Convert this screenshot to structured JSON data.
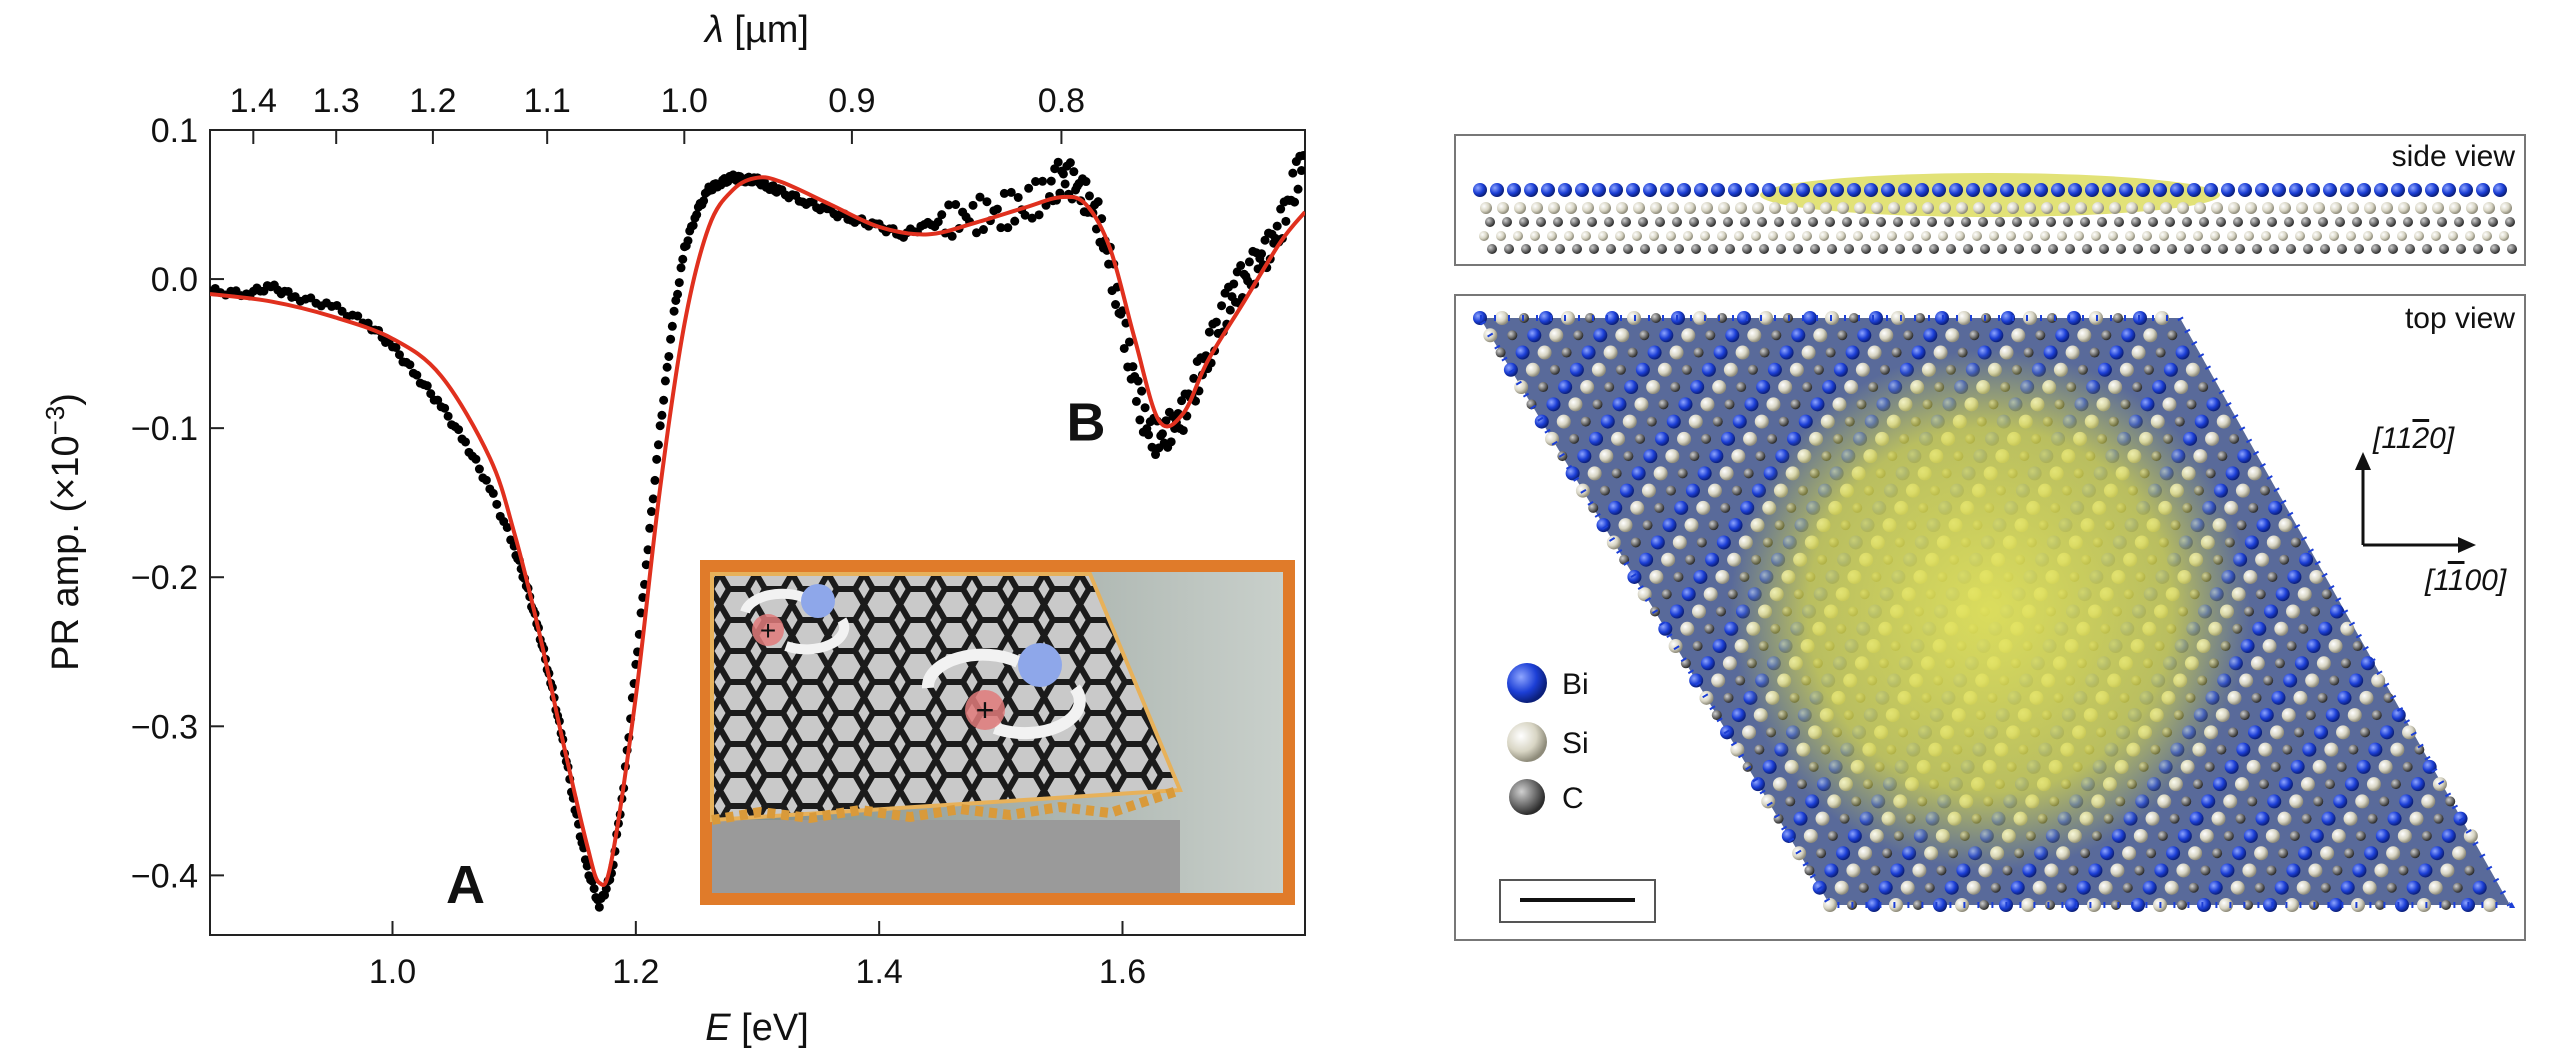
{
  "chart_data": [
    {
      "type": "scatter",
      "xlabel_var": "E",
      "xlabel_unit": " [eV]",
      "ylabel": "PR amp. (×10",
      "ylabel_exp": "−3",
      "ylabel_close": ")",
      "top_xlabel_var": "λ",
      "top_xlabel_unit": " [µm]",
      "xlim": [
        0.85,
        1.75
      ],
      "ylim": [
        -0.44,
        0.1
      ],
      "xticks": [
        1.0,
        1.2,
        1.4,
        1.6
      ],
      "xtick_labels": [
        "1.0",
        "1.2",
        "1.4",
        "1.6"
      ],
      "yticks": [
        0.1,
        0.0,
        -0.1,
        -0.2,
        -0.3,
        -0.4
      ],
      "ytick_labels": [
        "0.1",
        "0.0",
        "−0.1",
        "−0.2",
        "−0.3",
        "−0.4"
      ],
      "top_ticks_um": [
        1.4,
        1.3,
        1.2,
        1.1,
        1.0,
        0.9,
        0.8
      ],
      "top_tick_labels": [
        "1.4",
        "1.3",
        "1.2",
        "1.1",
        "1.0",
        "0.9",
        "0.8"
      ],
      "annotations": [
        {
          "text": "A",
          "x": 1.06,
          "y": -0.405
        },
        {
          "text": "B",
          "x": 1.57,
          "y": -0.095
        }
      ],
      "series": [
        {
          "kind": "data-points",
          "color": "#000000",
          "x": [
            0.85,
            0.88,
            0.9,
            0.92,
            0.95,
            0.98,
            1.0,
            1.02,
            1.04,
            1.06,
            1.08,
            1.1,
            1.11,
            1.12,
            1.13,
            1.14,
            1.15,
            1.16,
            1.17,
            1.18,
            1.19,
            1.2,
            1.21,
            1.22,
            1.23,
            1.24,
            1.25,
            1.26,
            1.27,
            1.28,
            1.29,
            1.3,
            1.31,
            1.32,
            1.34,
            1.36,
            1.38,
            1.4,
            1.42,
            1.44,
            1.46,
            1.48,
            1.5,
            1.52,
            1.54,
            1.55,
            1.56,
            1.57,
            1.58,
            1.59,
            1.6,
            1.61,
            1.62,
            1.63,
            1.64,
            1.65,
            1.66,
            1.67,
            1.68,
            1.69,
            1.7,
            1.71,
            1.72,
            1.73,
            1.74,
            1.75
          ],
          "y": [
            -0.008,
            -0.01,
            -0.005,
            -0.012,
            -0.018,
            -0.03,
            -0.045,
            -0.065,
            -0.085,
            -0.11,
            -0.14,
            -0.18,
            -0.205,
            -0.235,
            -0.27,
            -0.31,
            -0.355,
            -0.395,
            -0.42,
            -0.4,
            -0.34,
            -0.26,
            -0.18,
            -0.1,
            -0.03,
            0.02,
            0.045,
            0.06,
            0.065,
            0.068,
            0.067,
            0.066,
            0.062,
            0.058,
            0.052,
            0.045,
            0.04,
            0.035,
            0.03,
            0.036,
            0.04,
            0.043,
            0.045,
            0.05,
            0.058,
            0.07,
            0.065,
            0.055,
            0.04,
            0.01,
            -0.03,
            -0.07,
            -0.1,
            -0.108,
            -0.1,
            -0.09,
            -0.07,
            -0.05,
            -0.03,
            -0.01,
            0.0,
            0.01,
            0.02,
            0.035,
            0.06,
            0.085
          ]
        },
        {
          "kind": "fit",
          "color": "#e0301e",
          "x": [
            0.85,
            0.9,
            0.95,
            1.0,
            1.04,
            1.08,
            1.1,
            1.12,
            1.14,
            1.16,
            1.17,
            1.18,
            1.2,
            1.22,
            1.24,
            1.26,
            1.28,
            1.3,
            1.32,
            1.36,
            1.4,
            1.44,
            1.48,
            1.52,
            1.55,
            1.57,
            1.59,
            1.61,
            1.63,
            1.65,
            1.67,
            1.7,
            1.73,
            1.75
          ],
          "y": [
            -0.01,
            -0.015,
            -0.025,
            -0.04,
            -0.065,
            -0.12,
            -0.17,
            -0.235,
            -0.31,
            -0.38,
            -0.405,
            -0.39,
            -0.28,
            -0.14,
            -0.03,
            0.035,
            0.06,
            0.068,
            0.065,
            0.05,
            0.035,
            0.03,
            0.038,
            0.048,
            0.055,
            0.05,
            0.02,
            -0.04,
            -0.095,
            -0.09,
            -0.055,
            -0.015,
            0.025,
            0.045
          ]
        }
      ]
    }
  ],
  "atomic_panel": {
    "side_view_label": "side view",
    "top_view_label": "top view",
    "direction_up_label": "[11",
    "direction_up_bar": "2",
    "direction_up_end": "0]",
    "direction_right_label": "[1",
    "direction_right_bar": "1",
    "direction_right_end": "00]",
    "legend": [
      {
        "symbol": "Bi",
        "color": "#1c3fd6"
      },
      {
        "symbol": "Si",
        "color": "#d8d5c4"
      },
      {
        "symbol": "C",
        "color": "#6e6e6e"
      }
    ],
    "highlight_color": "#d8d84a"
  },
  "inset": {
    "frame_color": "#e07b2a",
    "lattice_color": "#2a2a2a",
    "hole_color": "#6a8fe0",
    "electron_color": "#e07a7a"
  }
}
